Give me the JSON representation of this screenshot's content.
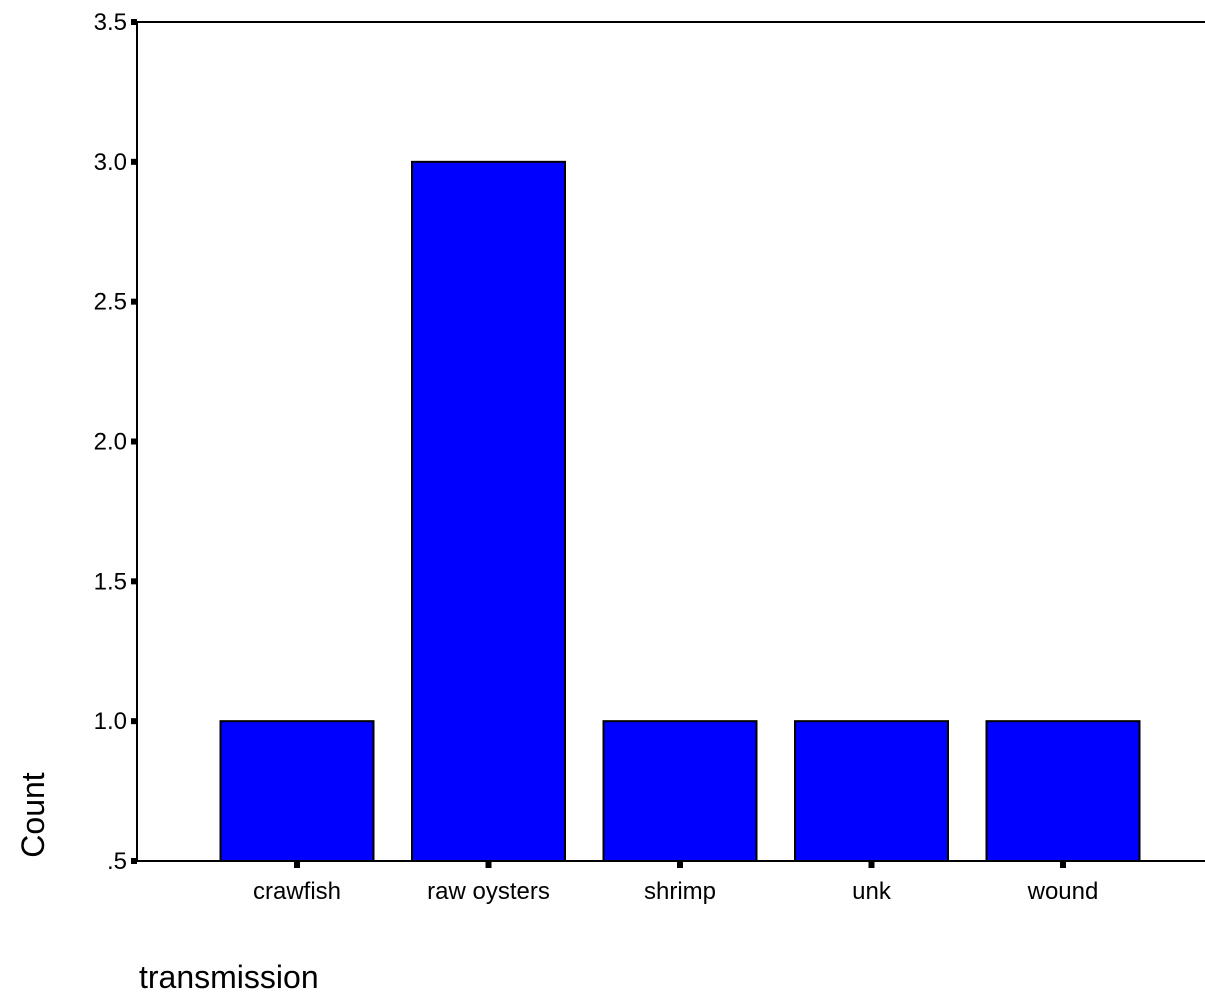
{
  "chart_data": {
    "type": "bar",
    "categories": [
      "crawfish",
      "raw oysters",
      "shrimp",
      "unk",
      "wound"
    ],
    "values": [
      1,
      3,
      1,
      1,
      1
    ],
    "title": "",
    "xlabel": "transmission",
    "ylabel": "Count",
    "ylim": [
      0.5,
      3.5
    ],
    "yticks": [
      ".5",
      "1.0",
      "1.5",
      "2.0",
      "2.5",
      "3.0",
      "3.5"
    ],
    "ytick_values": [
      0.5,
      1.0,
      1.5,
      2.0,
      2.5,
      3.0,
      3.5
    ],
    "grid": false,
    "legend": "none",
    "colors": {
      "bar_fill": "#0000FF",
      "bar_stroke": "#000000",
      "axis": "#000000",
      "background": "#FFFFFF"
    }
  }
}
